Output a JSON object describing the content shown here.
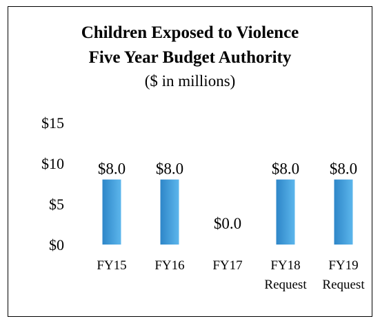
{
  "chart_data": {
    "type": "bar",
    "title": "Children Exposed to Violence",
    "subtitle": "Five Year Budget Authority",
    "units_note": "($ in millions)",
    "categories": [
      {
        "line1": "FY15",
        "line2": ""
      },
      {
        "line1": "FY16",
        "line2": ""
      },
      {
        "line1": "FY17",
        "line2": ""
      },
      {
        "line1": "FY18",
        "line2": "Request"
      },
      {
        "line1": "FY19",
        "line2": "Request"
      }
    ],
    "values": [
      8.0,
      8.0,
      0.0,
      8.0,
      8.0
    ],
    "data_labels": [
      "$8.0",
      "$8.0",
      "$0.0",
      "$8.0",
      "$8.0"
    ],
    "y_ticks": [
      0,
      5,
      10,
      15
    ],
    "y_tick_labels": [
      "$0",
      "$5",
      "$10",
      "$15"
    ],
    "ylim": [
      0,
      15
    ],
    "grid": false,
    "legend": "none",
    "colors": {
      "bar_dark": "#2e86c8",
      "bar_light": "#5cb6ec"
    }
  }
}
